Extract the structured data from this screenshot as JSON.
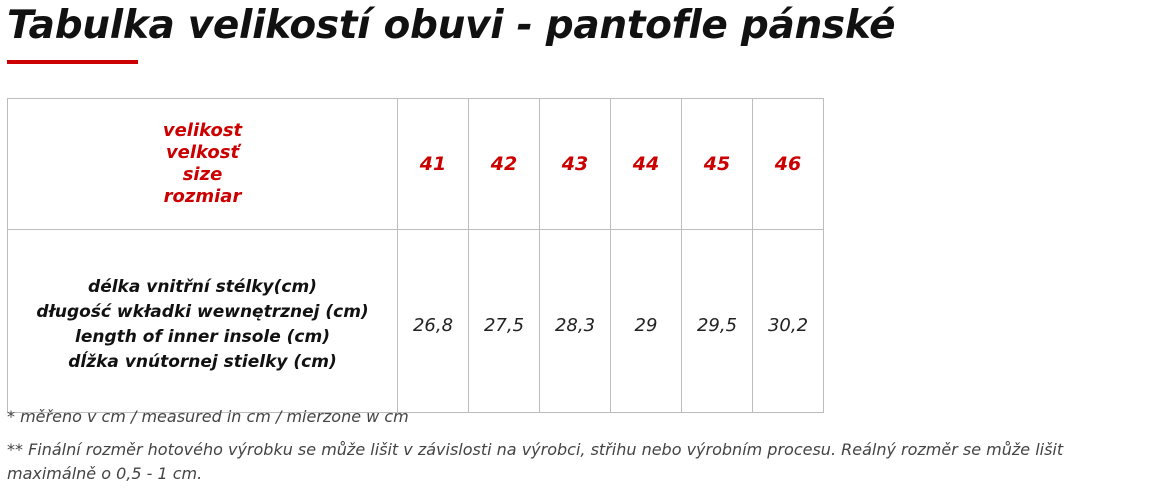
{
  "title": "Tabulka velikostí obuvi - pantofle pánské",
  "accent_color": "#cc0000",
  "table": {
    "header_labels": [
      "velikost",
      "velkosť",
      "size",
      "rozmiar"
    ],
    "sizes": [
      "41",
      "42",
      "43",
      "44",
      "45",
      "46"
    ],
    "row_labels": [
      "délka vnitřní stélky(cm)",
      "długość wkładki wewnętrznej (cm)",
      "length of inner insole (cm)",
      "dĺžka vnútornej stielky (cm)"
    ],
    "insole_lengths": [
      "26,8",
      "27,5",
      "28,3",
      "29",
      "29,5",
      "30,2"
    ]
  },
  "footnotes": {
    "note1": "* měřeno v cm / measured in cm / mierzone w cm",
    "note2": "** Finální rozměr hotového výrobku se může lišit v závislosti na výrobci, střihu nebo výrobním procesu. Reálný rozměr se může lišit maximálně o 0,5 - 1 cm."
  }
}
